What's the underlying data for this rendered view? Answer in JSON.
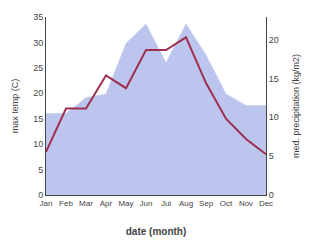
{
  "chart_data": {
    "type": "line",
    "xlabel": "date (month)",
    "ylabel": "max temp (C)",
    "y2label": "med. precipitation (kg/m2)",
    "categories": [
      "Jan",
      "Feb",
      "Mar",
      "Apr",
      "May",
      "Jun",
      "Jul",
      "Aug",
      "Sep",
      "Oct",
      "Nov",
      "Dec"
    ],
    "series": [
      {
        "type": "area",
        "color": "#bcc5ee",
        "axis": "y2",
        "values": [
          10.5,
          10.5,
          12.5,
          13.0,
          19.5,
          22.0,
          17.0,
          22.0,
          18.0,
          13.0,
          11.5,
          11.5
        ]
      },
      {
        "type": "line",
        "color": "#a03050",
        "values": [
          8.5,
          17.0,
          17.0,
          23.5,
          21.0,
          28.5,
          28.5,
          31.0,
          22.0,
          15.0,
          11.0,
          8.0
        ]
      }
    ],
    "ylim": [
      0,
      35
    ],
    "yticks": [
      0,
      5,
      10,
      15,
      20,
      25,
      30,
      35
    ],
    "y2lim": [
      0,
      22.9
    ],
    "y2ticks": [
      0,
      5,
      10,
      15,
      20
    ],
    "grid": false
  }
}
